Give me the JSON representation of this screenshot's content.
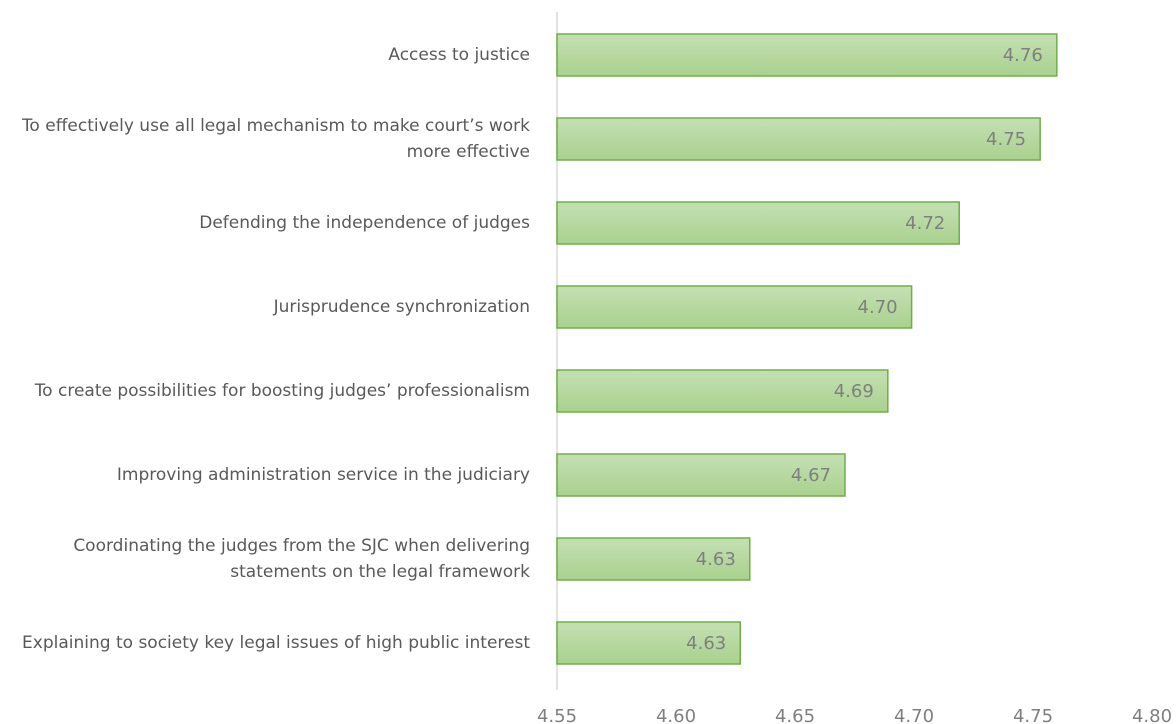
{
  "chart_data": {
    "type": "bar",
    "orientation": "horizontal",
    "categories": [
      "Access to justice",
      "To effectively use all legal mechanism to make court’s work more effective",
      "Defending the independence of judges",
      "Jurisprudence synchronization",
      "To create possibilities for boosting judges’ professionalism",
      "Improving administration service in the judiciary",
      "Coordinating the judges from the SJC when delivering statements on the legal framework",
      "Explaining to society key legal issues of high public interest"
    ],
    "values": [
      4.76,
      4.753,
      4.719,
      4.699,
      4.689,
      4.671,
      4.631,
      4.627
    ],
    "value_labels": [
      "4.76",
      "4.75",
      "4.72",
      "4.70",
      "4.69",
      "4.67",
      "4.63",
      "4.63"
    ],
    "color": "#a9d18e",
    "xlim": [
      4.55,
      4.8
    ],
    "xticks": [
      4.55,
      {
        "value": 4.6,
        "label": "4.60"
      },
      4.65,
      {
        "value": 4.7,
        "label": "4.70"
      },
      4.75,
      {
        "value": 4.8,
        "label": "4.80"
      }
    ]
  }
}
